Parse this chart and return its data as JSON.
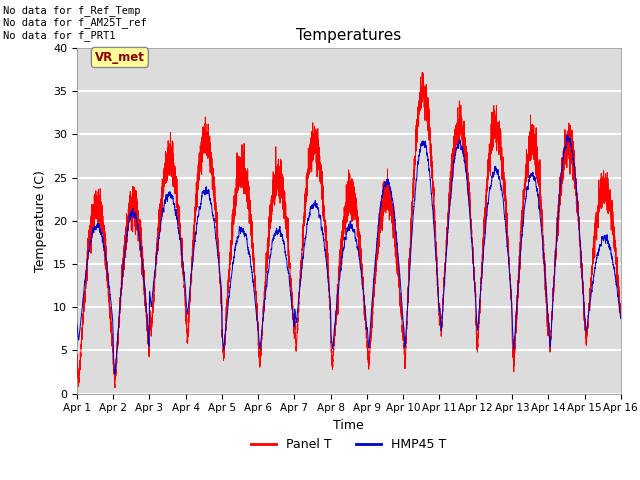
{
  "title": "Temperatures",
  "xlabel": "Time",
  "ylabel": "Temperature (C)",
  "xlim": [
    0,
    15
  ],
  "ylim": [
    0,
    40
  ],
  "yticks": [
    0,
    5,
    10,
    15,
    20,
    25,
    30,
    35,
    40
  ],
  "xtick_labels": [
    "Apr 1",
    "Apr 2",
    "Apr 3",
    "Apr 4",
    "Apr 5",
    "Apr 6",
    "Apr 7",
    "Apr 8",
    "Apr 9",
    "Apr 10",
    "Apr 11",
    "Apr 12",
    "Apr 13",
    "Apr 14",
    "Apr 15",
    "Apr 16"
  ],
  "panel_color": "#FF0000",
  "hmp45_color": "#0000CC",
  "legend_labels": [
    "Panel T",
    "HMP45 T"
  ],
  "annotation_lines": [
    "No data for f_Ref_Temp",
    "No data for f_AM25T_ref",
    "No data for f_PRT1"
  ],
  "tooltip_text": "VR_met",
  "background_color": "#DCDCDC",
  "grid_color": "#FFFFFF",
  "figsize": [
    6.4,
    4.8
  ],
  "dpi": 100
}
